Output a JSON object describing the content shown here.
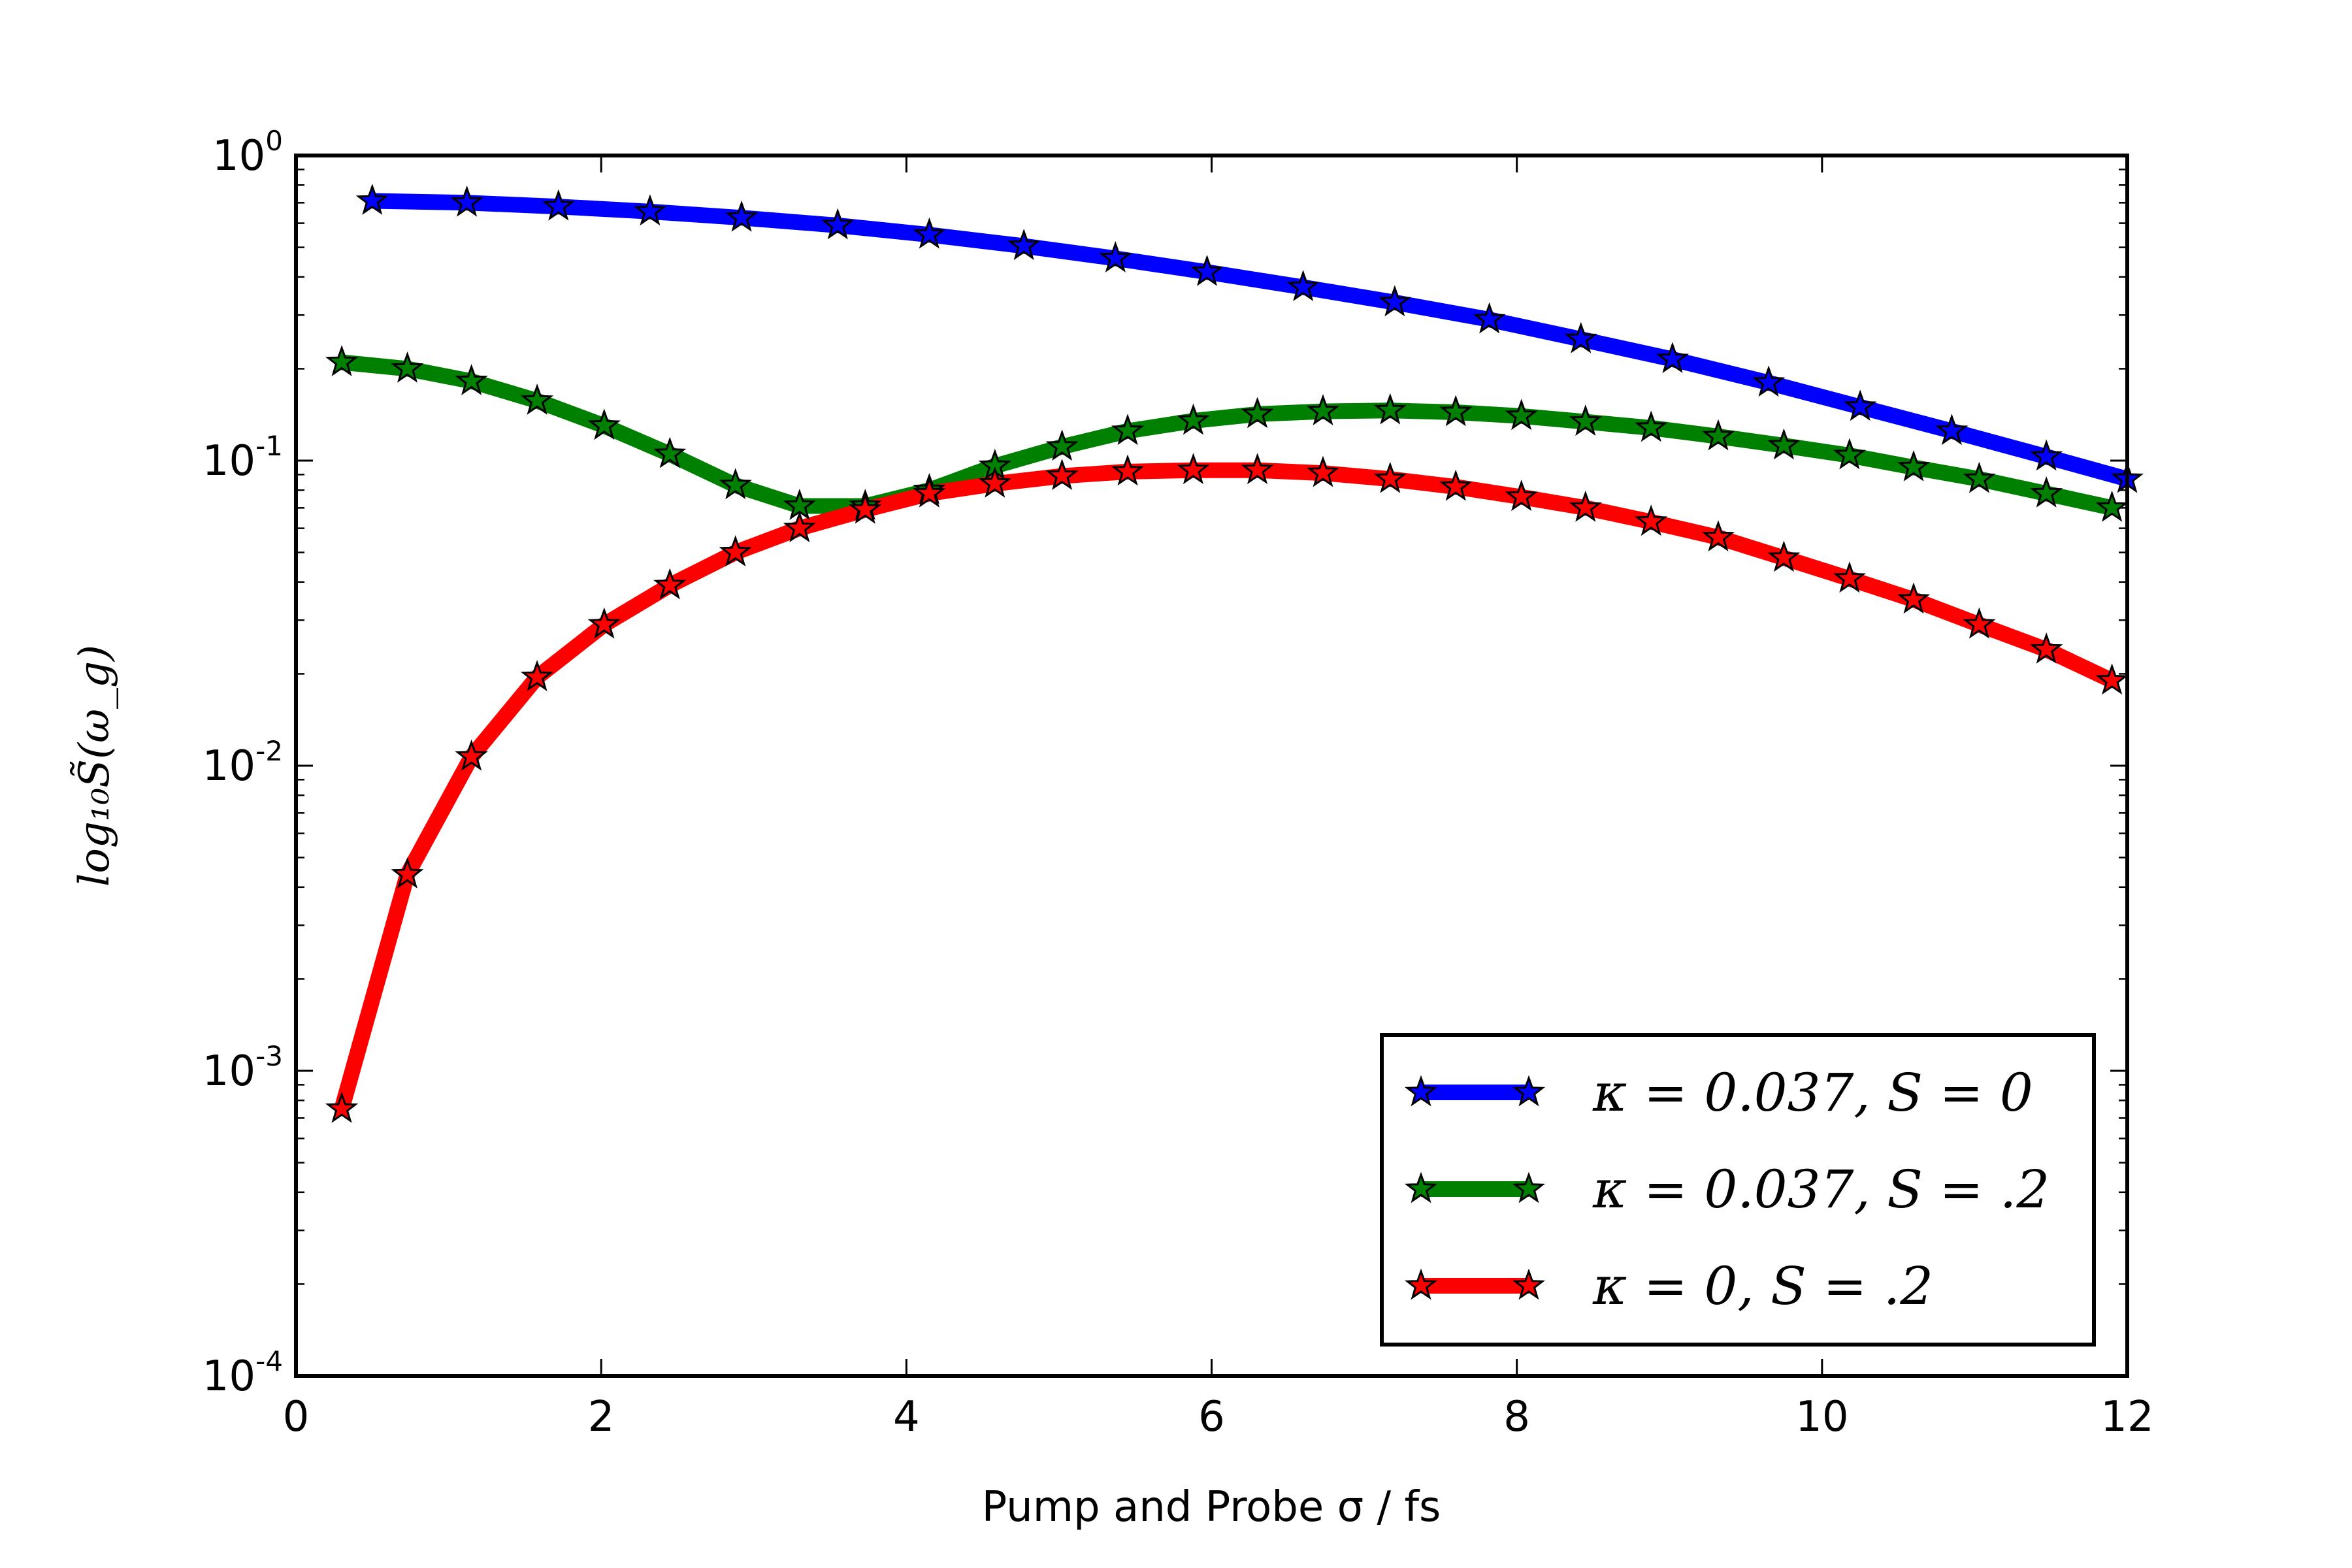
{
  "chart_data": {
    "type": "line",
    "xlabel": "Pump and Probe σ / fs",
    "ylabel": "log₁₀S̃(ω_g)",
    "xlim": [
      0,
      12
    ],
    "ylim": [
      0.0001,
      1
    ],
    "yscale": "log",
    "grid": false,
    "legend_position": "lower-right",
    "x_ticks": [
      0,
      2,
      4,
      6,
      8,
      10,
      12
    ],
    "y_ticks": [
      {
        "value": 1,
        "base": "10",
        "exp": "0"
      },
      {
        "value": 0.1,
        "base": "10",
        "exp": "-1"
      },
      {
        "value": 0.01,
        "base": "10",
        "exp": "-2"
      },
      {
        "value": 0.001,
        "base": "10",
        "exp": "-3"
      },
      {
        "value": 0.0001,
        "base": "10",
        "exp": "-4"
      }
    ],
    "series": [
      {
        "name": "κ = 0.037, S = 0",
        "color": "#0000ff",
        "marker": "star",
        "x": [
          0.5,
          1.12,
          1.72,
          2.32,
          2.92,
          3.55,
          4.15,
          4.77,
          5.37,
          5.97,
          6.6,
          7.2,
          7.82,
          8.42,
          9.02,
          9.65,
          10.25,
          10.85,
          11.47,
          12.0
        ],
        "y": [
          0.71,
          0.7,
          0.68,
          0.655,
          0.625,
          0.59,
          0.55,
          0.505,
          0.46,
          0.415,
          0.37,
          0.33,
          0.29,
          0.25,
          0.215,
          0.18,
          0.15,
          0.125,
          0.103,
          0.087
        ]
      },
      {
        "name": "κ = 0.037, S = .2",
        "color": "#008000",
        "marker": "star",
        "x": [
          0.3,
          0.73,
          1.15,
          1.58,
          2.02,
          2.45,
          2.88,
          3.3,
          3.73,
          4.15,
          4.58,
          5.02,
          5.45,
          5.88,
          6.3,
          6.73,
          7.17,
          7.6,
          8.03,
          8.45,
          8.88,
          9.32,
          9.75,
          10.18,
          10.6,
          11.03,
          11.47,
          11.9
        ],
        "y": [
          0.21,
          0.2,
          0.182,
          0.157,
          0.13,
          0.105,
          0.083,
          0.071,
          0.071,
          0.08,
          0.096,
          0.111,
          0.125,
          0.135,
          0.142,
          0.145,
          0.146,
          0.144,
          0.14,
          0.134,
          0.128,
          0.12,
          0.112,
          0.104,
          0.095,
          0.087,
          0.078,
          0.07
        ]
      },
      {
        "name": "κ = 0, S = .2",
        "color": "#ff0000",
        "marker": "star",
        "x": [
          0.3,
          0.73,
          1.15,
          1.58,
          2.02,
          2.45,
          2.88,
          3.3,
          3.73,
          4.15,
          4.58,
          5.02,
          5.45,
          5.88,
          6.3,
          6.73,
          7.17,
          7.6,
          8.03,
          8.45,
          8.88,
          9.32,
          9.75,
          10.18,
          10.6,
          11.03,
          11.47,
          11.9
        ],
        "y": [
          0.00075,
          0.0044,
          0.0107,
          0.0195,
          0.029,
          0.039,
          0.05,
          0.06,
          0.069,
          0.078,
          0.084,
          0.089,
          0.092,
          0.093,
          0.093,
          0.091,
          0.087,
          0.082,
          0.076,
          0.07,
          0.063,
          0.056,
          0.048,
          0.041,
          0.035,
          0.029,
          0.024,
          0.019
        ]
      }
    ]
  }
}
